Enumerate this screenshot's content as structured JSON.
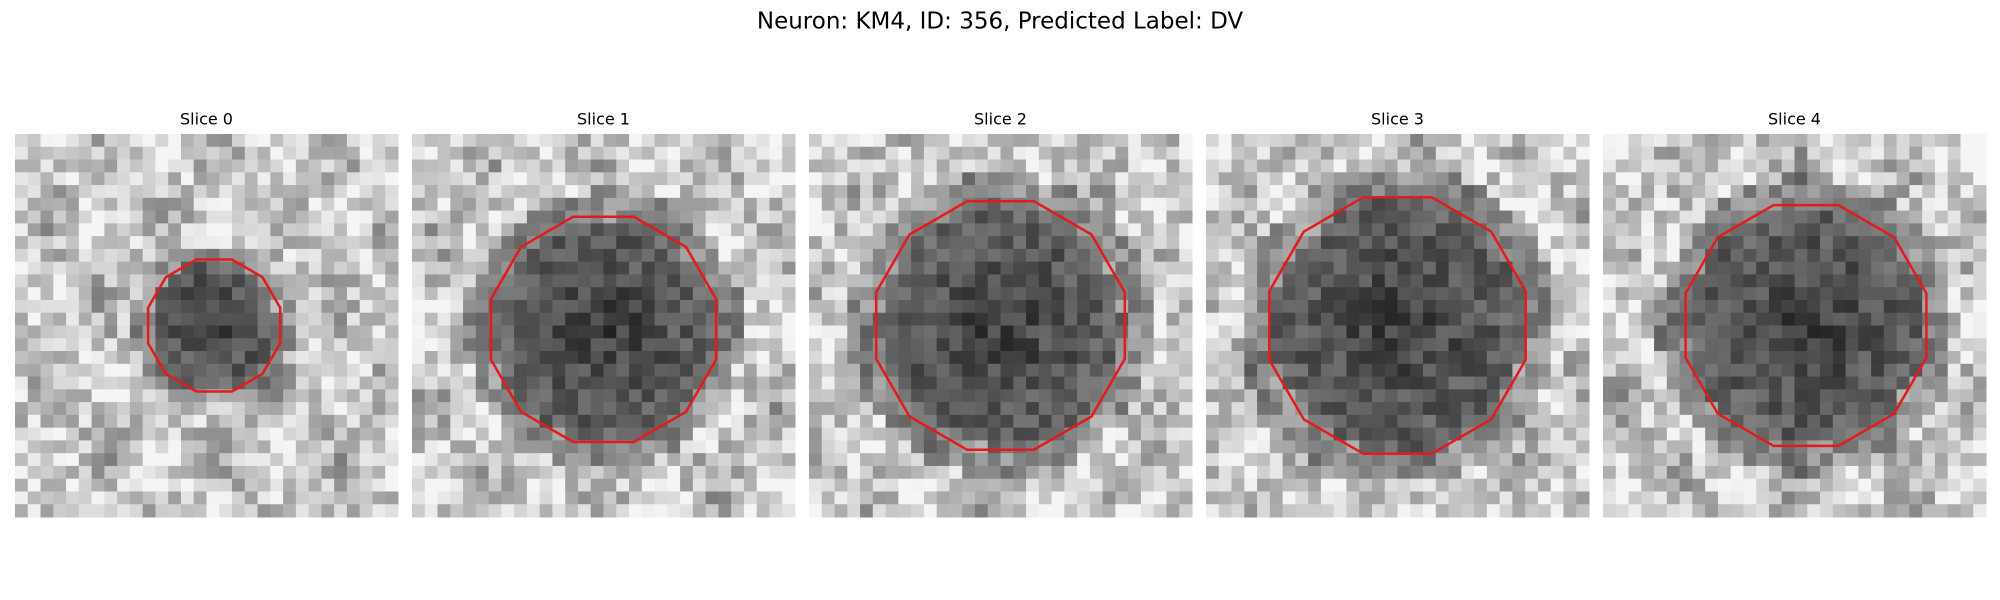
{
  "figure": {
    "title": "Neuron: KM4, ID: 356, Predicted Label: DV",
    "panels": [
      {
        "title": "Slice 0"
      },
      {
        "title": "Slice 1"
      },
      {
        "title": "Slice 2"
      },
      {
        "title": "Slice 3"
      },
      {
        "title": "Slice 4"
      }
    ]
  }
}
